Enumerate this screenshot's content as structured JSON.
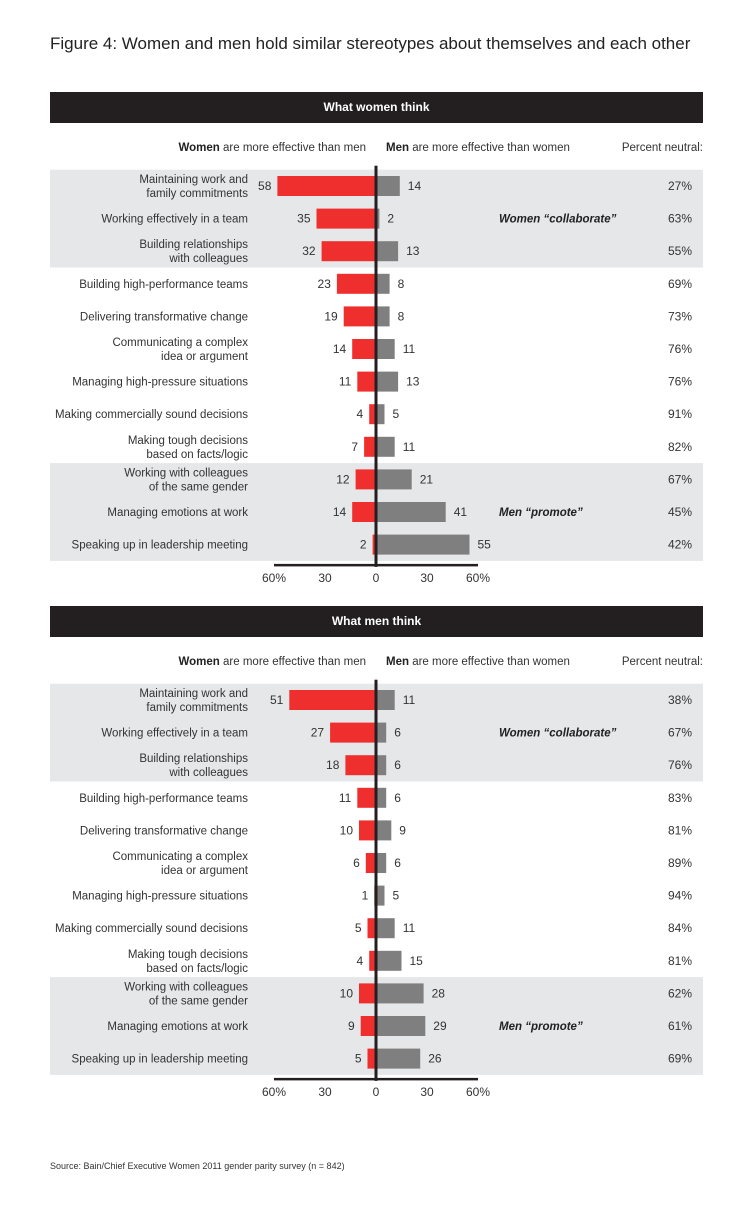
{
  "figure_title": "Figure 4: Women and men hold similar stereotypes about themselves and each other",
  "source": "Source: Bain/Chief Executive Women 2011 gender parity survey (n = 842)",
  "colors": {
    "women": "#ee2f2e",
    "men": "#7f7f80",
    "band": "#e6e7e8",
    "header": "#231f20"
  },
  "chart_data": [
    {
      "type": "bar",
      "title": "What women think",
      "left_heading_bold": "Women",
      "left_heading_rest": " are more effective than men",
      "right_heading_bold": "Men",
      "right_heading_rest": " are more effective than women",
      "neutral_heading": "Percent neutral:",
      "xlim": [
        -60,
        60
      ],
      "x_ticks": [
        "60%",
        "30",
        "0",
        "30",
        "60%"
      ],
      "categories": [
        [
          "Maintaining work and",
          "family commitments"
        ],
        [
          "Working effectively in a team"
        ],
        [
          "Building relationships",
          "with colleagues"
        ],
        [
          "Building high-performance teams"
        ],
        [
          "Delivering transformative change"
        ],
        [
          "Communicating a complex",
          "idea or argument"
        ],
        [
          "Managing high-pressure situations"
        ],
        [
          "Making commercially sound decisions"
        ],
        [
          "Making tough decisions",
          "based on facts/logic"
        ],
        [
          "Working with colleagues",
          "of the same gender"
        ],
        [
          "Managing emotions at work"
        ],
        [
          "Speaking up in leadership meeting"
        ]
      ],
      "series": [
        {
          "name": "Women",
          "values": [
            58,
            35,
            32,
            23,
            19,
            14,
            11,
            4,
            7,
            12,
            14,
            2
          ]
        },
        {
          "name": "Men",
          "values": [
            14,
            2,
            13,
            8,
            8,
            11,
            13,
            5,
            11,
            21,
            41,
            55
          ]
        }
      ],
      "neutral": [
        "27%",
        "63%",
        "55%",
        "69%",
        "73%",
        "76%",
        "76%",
        "91%",
        "82%",
        "67%",
        "45%",
        "42%"
      ],
      "bands": [
        [
          0,
          2
        ],
        [
          9,
          11
        ]
      ],
      "annotations": [
        {
          "row": 1,
          "bold": "Women",
          "rest": " “collaborate”"
        },
        {
          "row": 10,
          "bold": "Men",
          "rest": " “promote”"
        }
      ]
    },
    {
      "type": "bar",
      "title": "What men think",
      "left_heading_bold": "Women",
      "left_heading_rest": " are more effective than men",
      "right_heading_bold": "Men",
      "right_heading_rest": " are more effective than women",
      "neutral_heading": "Percent neutral:",
      "xlim": [
        -60,
        60
      ],
      "x_ticks": [
        "60%",
        "30",
        "0",
        "30",
        "60%"
      ],
      "categories": [
        [
          "Maintaining work and",
          "family commitments"
        ],
        [
          "Working effectively in a team"
        ],
        [
          "Building relationships",
          "with colleagues"
        ],
        [
          "Building high-performance teams"
        ],
        [
          "Delivering transformative change"
        ],
        [
          "Communicating a complex",
          "idea or argument"
        ],
        [
          "Managing high-pressure situations"
        ],
        [
          "Making commercially sound decisions"
        ],
        [
          "Making tough decisions",
          "based on facts/logic"
        ],
        [
          "Working with colleagues",
          "of the same gender"
        ],
        [
          "Managing emotions at work"
        ],
        [
          "Speaking up in leadership meeting"
        ]
      ],
      "series": [
        {
          "name": "Women",
          "values": [
            51,
            27,
            18,
            11,
            10,
            6,
            1,
            5,
            4,
            10,
            9,
            5
          ]
        },
        {
          "name": "Men",
          "values": [
            11,
            6,
            6,
            6,
            9,
            6,
            5,
            11,
            15,
            28,
            29,
            26
          ]
        }
      ],
      "neutral": [
        "38%",
        "67%",
        "76%",
        "83%",
        "81%",
        "89%",
        "94%",
        "84%",
        "81%",
        "62%",
        "61%",
        "69%"
      ],
      "bands": [
        [
          0,
          2
        ],
        [
          9,
          11
        ]
      ],
      "annotations": [
        {
          "row": 1,
          "bold": "Women",
          "rest": " “collaborate”"
        },
        {
          "row": 10,
          "bold": "Men",
          "rest": " “promote”"
        }
      ]
    }
  ]
}
